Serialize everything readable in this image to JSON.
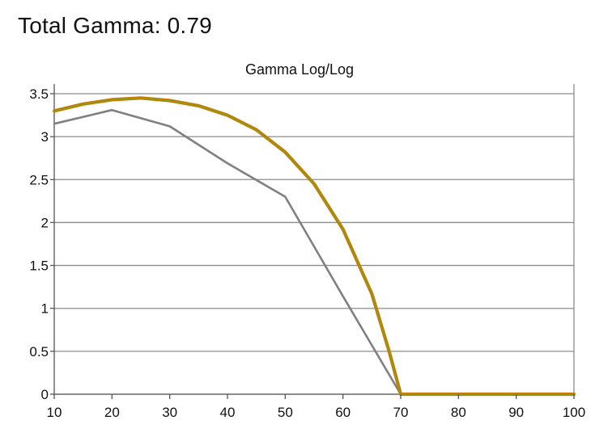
{
  "headline": "Total Gamma: 0.79",
  "chart_data": {
    "type": "line",
    "title": "Gamma Log/Log",
    "xlabel": "",
    "ylabel": "",
    "xlim": [
      10,
      100
    ],
    "ylim": [
      0,
      3.5
    ],
    "xticks": [
      10,
      20,
      30,
      40,
      50,
      60,
      70,
      80,
      90,
      100
    ],
    "yticks": [
      0,
      0.5,
      1,
      1.5,
      2,
      2.5,
      3,
      3.5
    ],
    "xtick_labels": [
      "10",
      "20",
      "30",
      "40",
      "50",
      "60",
      "70",
      "80",
      "90",
      "100"
    ],
    "ytick_labels": [
      "0",
      "0.5",
      "1",
      "1.5",
      "2",
      "2.5",
      "3",
      "3.5"
    ],
    "grid": "horizontal",
    "legend": "none",
    "series": [
      {
        "color": "#7f7f84",
        "points": [
          [
            10,
            3.15
          ],
          [
            20,
            3.31
          ],
          [
            30,
            3.12
          ],
          [
            40,
            2.69
          ],
          [
            50,
            2.3
          ],
          [
            60,
            1.14
          ],
          [
            70,
            0.0
          ],
          [
            80,
            0.0
          ],
          [
            90,
            0.0
          ],
          [
            100,
            0.0
          ]
        ]
      },
      {
        "color": "#cc7a00",
        "points": [
          [
            10,
            3.3
          ],
          [
            15,
            3.38
          ],
          [
            20,
            3.43
          ],
          [
            25,
            3.45
          ],
          [
            30,
            3.42
          ],
          [
            35,
            3.36
          ],
          [
            40,
            3.25
          ],
          [
            45,
            3.08
          ],
          [
            50,
            2.82
          ],
          [
            55,
            2.45
          ],
          [
            60,
            1.92
          ],
          [
            65,
            1.17
          ],
          [
            68,
            0.5
          ],
          [
            70,
            0.0
          ],
          [
            80,
            0.0
          ],
          [
            90,
            0.0
          ],
          [
            100,
            0.0
          ]
        ]
      },
      {
        "color": "#8a9a1a",
        "points": [
          [
            10,
            3.3
          ],
          [
            15,
            3.38
          ],
          [
            20,
            3.43
          ],
          [
            25,
            3.45
          ],
          [
            30,
            3.42
          ],
          [
            35,
            3.36
          ],
          [
            40,
            3.25
          ],
          [
            45,
            3.08
          ],
          [
            50,
            2.82
          ],
          [
            55,
            2.45
          ],
          [
            60,
            1.92
          ],
          [
            65,
            1.17
          ],
          [
            68,
            0.5
          ],
          [
            70,
            0.0
          ],
          [
            80,
            0.0
          ],
          [
            90,
            0.0
          ],
          [
            100,
            0.0
          ]
        ]
      }
    ]
  }
}
